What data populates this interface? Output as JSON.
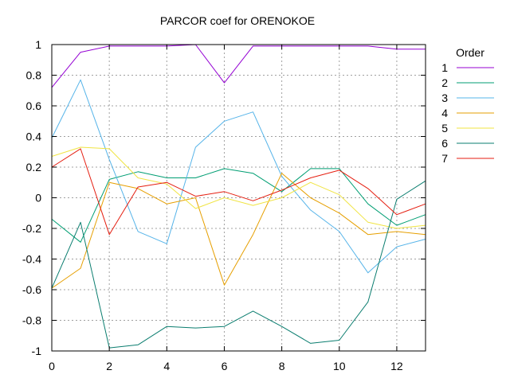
{
  "chart_data": {
    "type": "line",
    "title": "PARCOR coef for ORENOKOE",
    "xlabel": "",
    "ylabel": "",
    "xlim": [
      0,
      13
    ],
    "ylim": [
      -1,
      1
    ],
    "x_ticks": [
      0,
      2,
      4,
      6,
      8,
      10,
      12
    ],
    "y_ticks": [
      -1,
      -0.8,
      -0.6,
      -0.4,
      -0.2,
      0,
      0.2,
      0.4,
      0.6,
      0.8,
      1
    ],
    "x_tick_labels": [
      "0",
      "2",
      "4",
      "6",
      "8",
      "10",
      "12"
    ],
    "y_tick_labels": [
      "-1",
      "-0.8",
      "-0.6",
      "-0.4",
      "-0.2",
      "0",
      "0.2",
      "0.4",
      "0.6",
      "0.8",
      "1"
    ],
    "grid": true,
    "legend_title": "Order",
    "legend_position": "right",
    "x": [
      0,
      1,
      2,
      3,
      4,
      5,
      6,
      7,
      8,
      9,
      10,
      11,
      12,
      13
    ],
    "series": [
      {
        "name": "1",
        "color": "#9400d3",
        "values": [
          0.72,
          0.95,
          0.99,
          0.99,
          0.99,
          1.0,
          0.75,
          0.99,
          0.99,
          0.99,
          0.99,
          0.99,
          0.97,
          0.97
        ]
      },
      {
        "name": "2",
        "color": "#009e73",
        "values": [
          -0.14,
          -0.29,
          0.12,
          0.17,
          0.13,
          0.13,
          0.19,
          0.16,
          0.04,
          0.19,
          0.19,
          -0.04,
          -0.18,
          -0.11
        ]
      },
      {
        "name": "3",
        "color": "#56b4e9",
        "values": [
          0.39,
          0.77,
          0.25,
          -0.22,
          -0.3,
          0.33,
          0.5,
          0.56,
          0.14,
          -0.08,
          -0.22,
          -0.49,
          -0.32,
          -0.27
        ]
      },
      {
        "name": "4",
        "color": "#e69f00",
        "values": [
          -0.59,
          -0.46,
          0.1,
          0.06,
          -0.04,
          0.0,
          -0.57,
          -0.24,
          0.16,
          0.0,
          -0.1,
          -0.24,
          -0.22,
          -0.24
        ]
      },
      {
        "name": "5",
        "color": "#f0e442",
        "values": [
          0.27,
          0.33,
          0.32,
          0.13,
          0.09,
          -0.07,
          0.0,
          -0.05,
          0.0,
          0.1,
          0.02,
          -0.16,
          -0.2,
          -0.18
        ]
      },
      {
        "name": "6",
        "color": "#0a7d6f",
        "values": [
          -0.59,
          -0.16,
          -0.98,
          -0.96,
          -0.84,
          -0.85,
          -0.84,
          -0.74,
          -0.84,
          -0.95,
          -0.93,
          -0.68,
          -0.01,
          0.11
        ]
      },
      {
        "name": "7",
        "color": "#e51e10",
        "values": [
          0.2,
          0.32,
          -0.24,
          0.07,
          0.1,
          0.01,
          0.04,
          -0.02,
          0.05,
          0.13,
          0.18,
          0.06,
          -0.11,
          -0.04
        ]
      }
    ]
  }
}
